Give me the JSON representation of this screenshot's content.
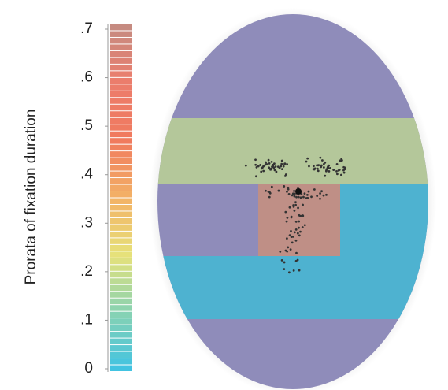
{
  "chart_data": {
    "type": "colorbar",
    "ylabel": "Prorata of fixation duration",
    "ylim": [
      0,
      0.7
    ],
    "yticks": [
      0,
      {
        "value": 0.1,
        "label": ".1"
      },
      {
        "value": 0.2,
        "label": ".2"
      },
      {
        "value": 0.3,
        "label": ".3"
      },
      {
        "value": 0.4,
        "label": ".4"
      },
      {
        "value": 0.5,
        "label": ".5"
      },
      {
        "value": 0.6,
        "label": ".6"
      },
      {
        "value": 0.7,
        "label": ".7"
      }
    ],
    "colormap": [
      "#3ec2e4",
      "#86d2b4",
      "#e6e27a",
      "#f3b266",
      "#f07a5e",
      "#ec7d6c",
      "#c48c82"
    ]
  }
}
